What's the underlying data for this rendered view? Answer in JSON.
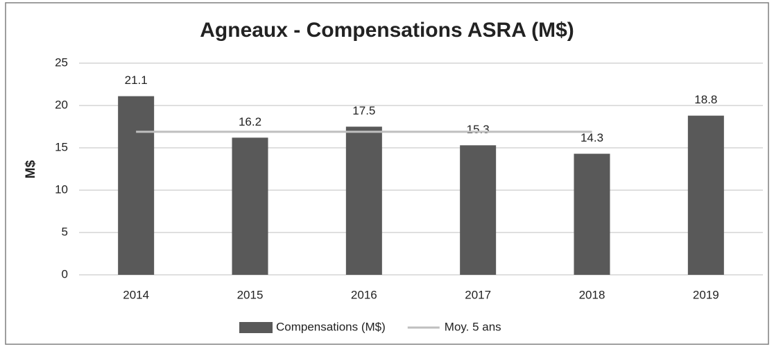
{
  "chart_data": {
    "type": "bar",
    "title": "Agneaux - Compensations ASRA (M$)",
    "y_label": "M$",
    "categories": [
      "2014",
      "2015",
      "2016",
      "2017",
      "2018",
      "2019"
    ],
    "series": [
      {
        "name": "Compensations (M$)",
        "type": "bar",
        "color": "#595959",
        "values": [
          21.1,
          16.2,
          17.5,
          15.3,
          14.3,
          18.8
        ]
      },
      {
        "name": "Moy. 5 ans",
        "type": "line",
        "color": "#bfbfbf",
        "values": [
          16.9,
          16.9,
          16.9,
          16.9,
          16.9,
          null
        ]
      }
    ],
    "ylim": [
      0,
      25
    ],
    "yticks": [
      0,
      5,
      10,
      15,
      20,
      25
    ],
    "grid": true,
    "legend": "bottom"
  }
}
